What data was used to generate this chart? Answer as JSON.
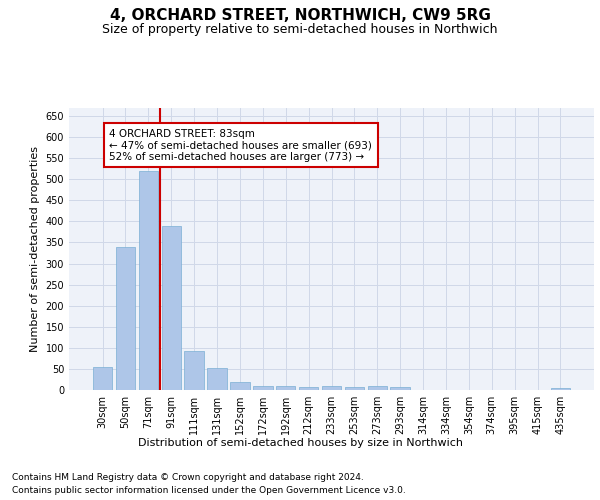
{
  "title_line1": "4, ORCHARD STREET, NORTHWICH, CW9 5RG",
  "title_line2": "Size of property relative to semi-detached houses in Northwich",
  "xlabel": "Distribution of semi-detached houses by size in Northwich",
  "ylabel": "Number of semi-detached properties",
  "categories": [
    "30sqm",
    "50sqm",
    "71sqm",
    "91sqm",
    "111sqm",
    "131sqm",
    "152sqm",
    "172sqm",
    "192sqm",
    "212sqm",
    "233sqm",
    "253sqm",
    "273sqm",
    "293sqm",
    "314sqm",
    "334sqm",
    "354sqm",
    "374sqm",
    "395sqm",
    "415sqm",
    "435sqm"
  ],
  "values": [
    55,
    340,
    520,
    390,
    93,
    52,
    20,
    10,
    10,
    8,
    10,
    8,
    10,
    8,
    0,
    0,
    0,
    0,
    0,
    0,
    5
  ],
  "bar_color": "#aec6e8",
  "bar_edge_color": "#7aafd4",
  "grid_color": "#d0d8e8",
  "bg_color": "#eef2f9",
  "annotation_box_text": "4 ORCHARD STREET: 83sqm\n← 47% of semi-detached houses are smaller (693)\n52% of semi-detached houses are larger (773) →",
  "annotation_box_color": "#ffffff",
  "annotation_box_edge": "#cc0000",
  "red_line_x": 2.5,
  "marker_color": "#cc0000",
  "ylim": [
    0,
    670
  ],
  "yticks": [
    0,
    50,
    100,
    150,
    200,
    250,
    300,
    350,
    400,
    450,
    500,
    550,
    600,
    650
  ],
  "footer_line1": "Contains HM Land Registry data © Crown copyright and database right 2024.",
  "footer_line2": "Contains public sector information licensed under the Open Government Licence v3.0.",
  "title_fontsize": 11,
  "subtitle_fontsize": 9,
  "axis_label_fontsize": 8,
  "tick_fontsize": 7,
  "annotation_fontsize": 7.5,
  "footer_fontsize": 6.5
}
